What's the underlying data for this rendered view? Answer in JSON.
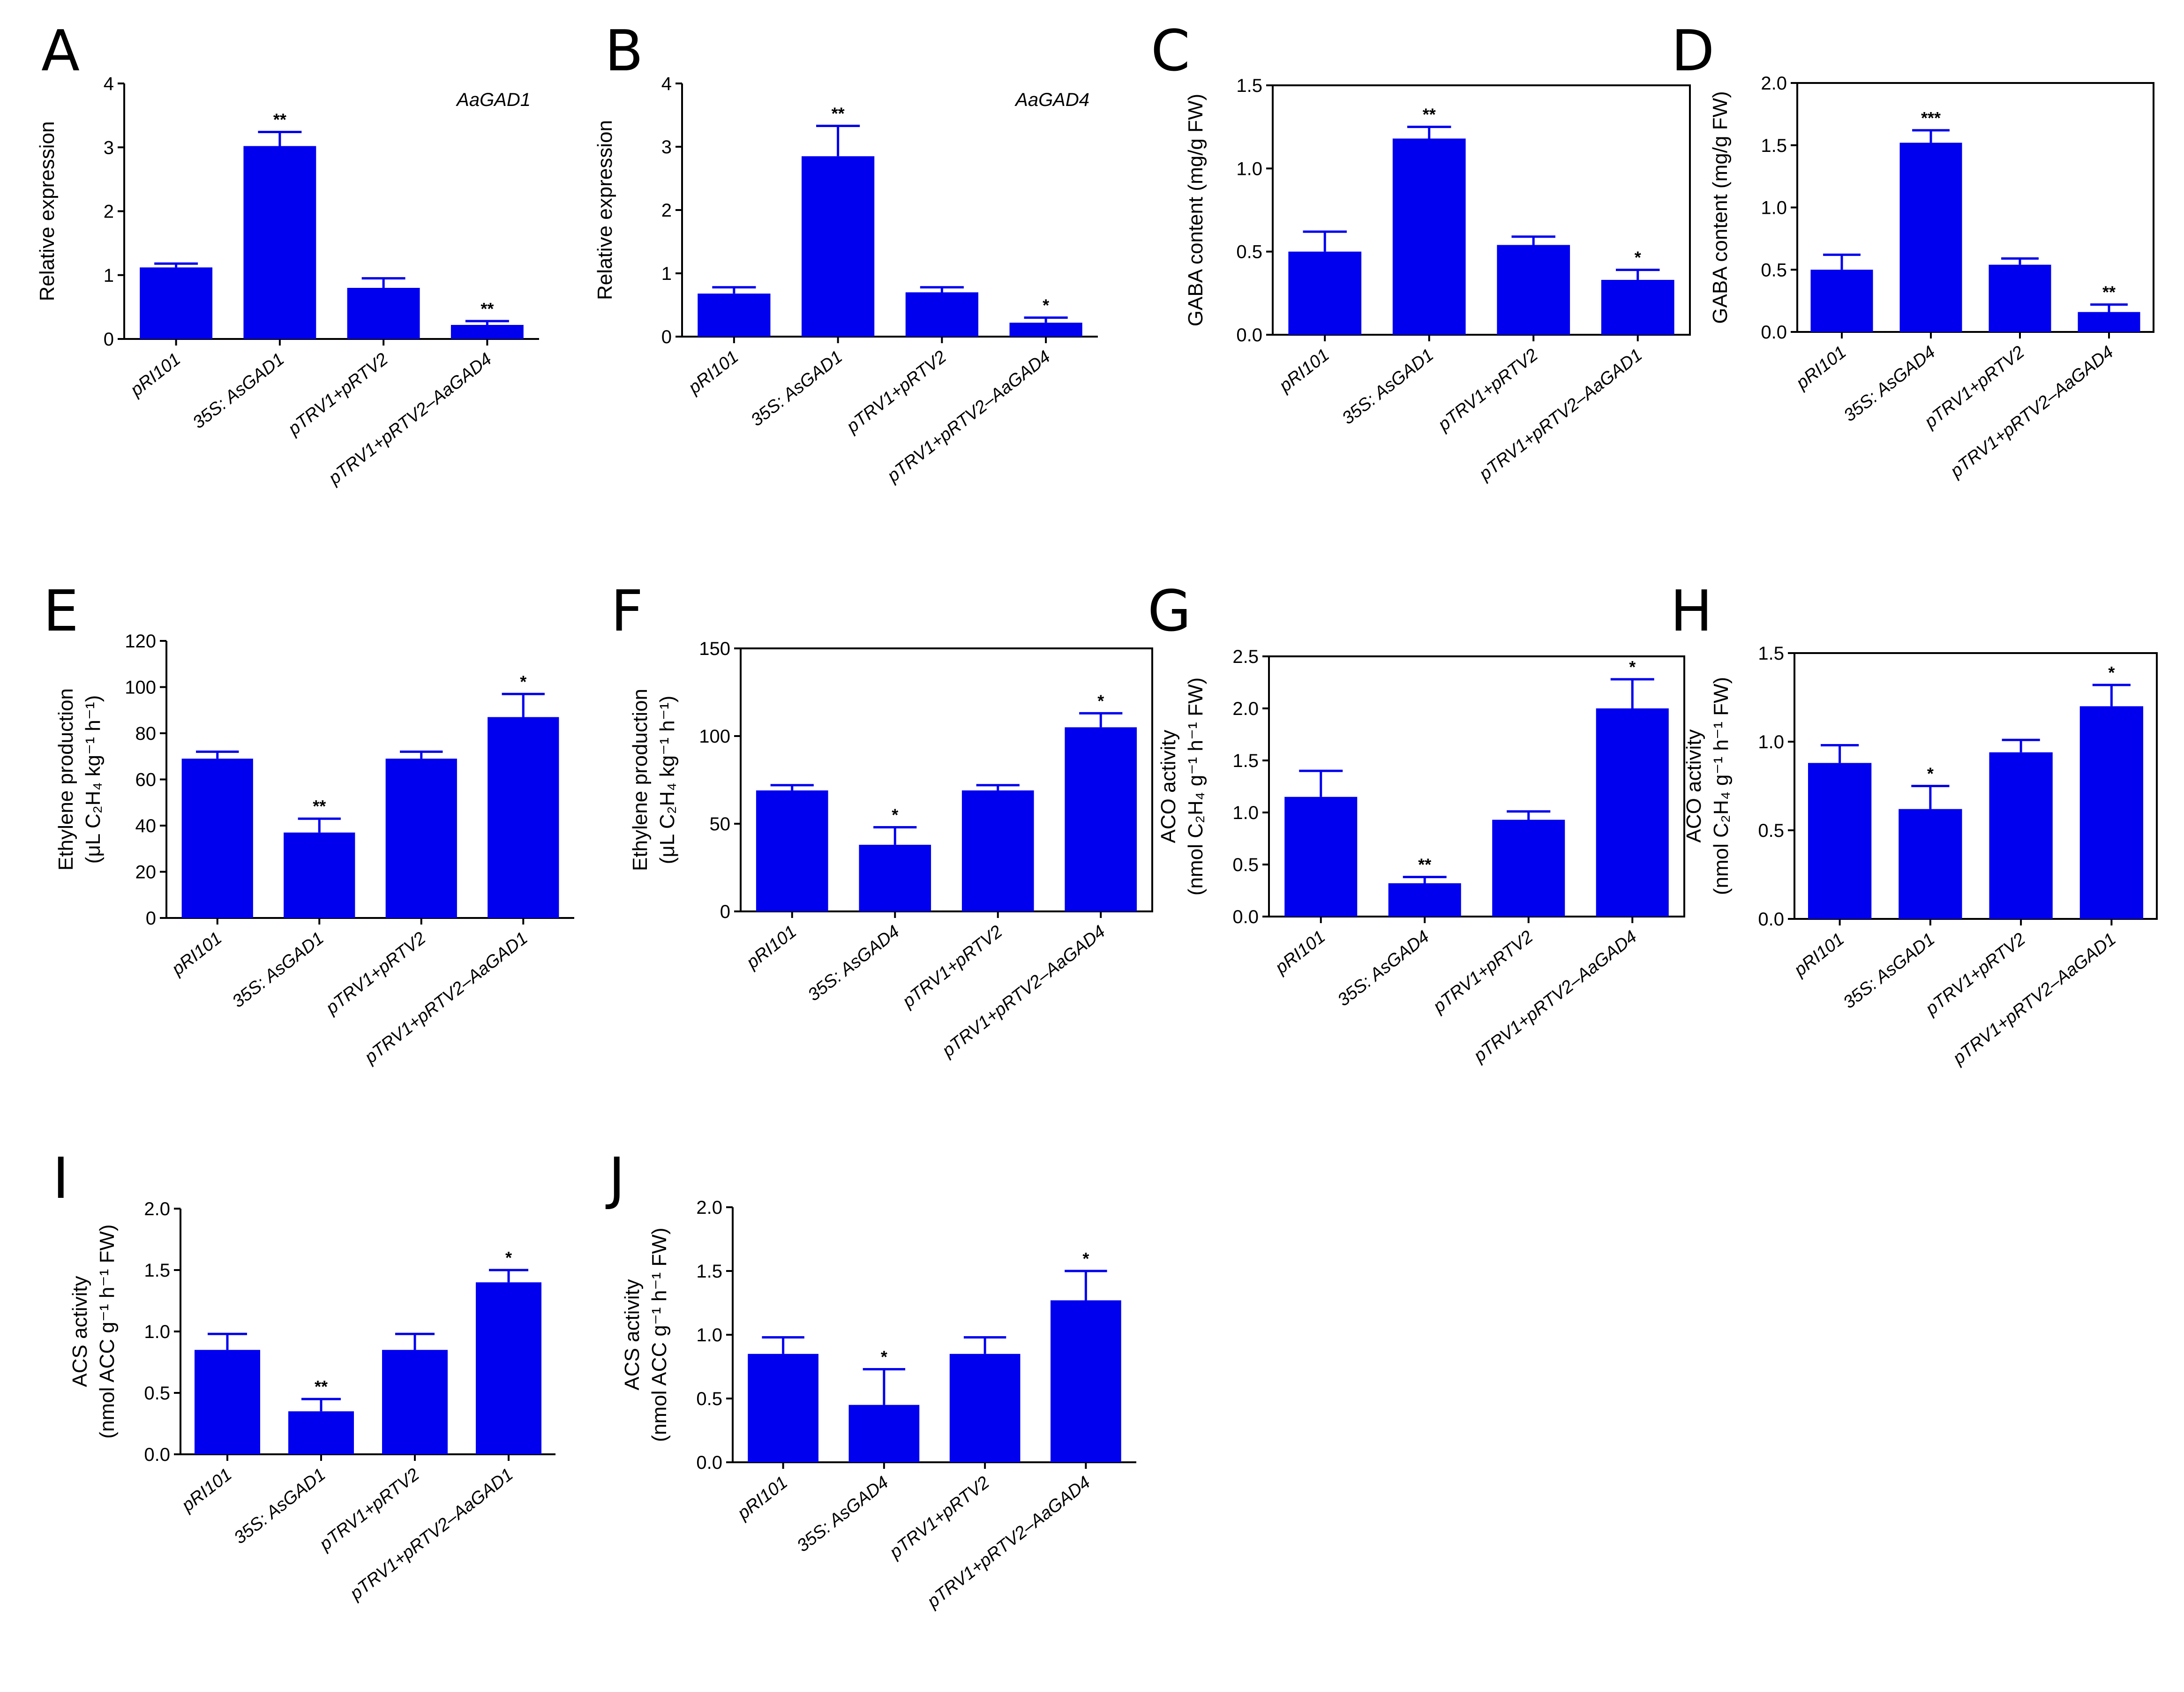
{
  "figure": {
    "bar_color": "#0000ee",
    "axis_color": "#000000"
  },
  "chart_data": [
    {
      "panel": "A",
      "type": "bar",
      "categories": [
        "pRI101",
        "35S: AsGAD1",
        "pTRV1+pRTV2",
        "pTRV1+pRTV2–AaGAD4"
      ],
      "values": [
        1.12,
        3.02,
        0.8,
        0.22
      ],
      "errors": [
        0.06,
        0.22,
        0.15,
        0.06
      ],
      "significance": [
        "",
        "**",
        "",
        "**"
      ],
      "ylabel": [
        "Relative expression"
      ],
      "ylim": [
        0,
        4
      ],
      "yticks": [
        "0",
        "1",
        "2",
        "3",
        "4"
      ],
      "annotation": "AaGAD1",
      "box": false
    },
    {
      "panel": "B",
      "type": "bar",
      "categories": [
        "pRI101",
        "35S: AsGAD1",
        "pTRV1+pRTV2",
        "pTRV1+pRTV2–AaGAD4"
      ],
      "values": [
        0.68,
        2.85,
        0.7,
        0.22
      ],
      "errors": [
        0.1,
        0.48,
        0.08,
        0.08
      ],
      "significance": [
        "",
        "**",
        "",
        "*"
      ],
      "ylabel": [
        "Relative expression"
      ],
      "ylim": [
        0,
        4
      ],
      "yticks": [
        "0",
        "1",
        "2",
        "3",
        "4"
      ],
      "annotation": "AaGAD4",
      "box": false
    },
    {
      "panel": "C",
      "type": "bar",
      "categories": [
        "pRI101",
        "35S: AsGAD1",
        "pTRV1+pRTV2",
        "pTRV1+pRTV2–AaGAD1"
      ],
      "values": [
        0.5,
        1.18,
        0.54,
        0.33
      ],
      "errors": [
        0.12,
        0.07,
        0.05,
        0.06
      ],
      "significance": [
        "",
        "**",
        "",
        "*"
      ],
      "ylabel": [
        "GABA content (mg/g FW)"
      ],
      "ylim": [
        0,
        1.5
      ],
      "yticks": [
        "0.0",
        "0.5",
        "1.0",
        "1.5"
      ],
      "annotation": "",
      "box": true
    },
    {
      "panel": "D",
      "type": "bar",
      "categories": [
        "pRI101",
        "35S: AsGAD4",
        "pTRV1+pRTV2",
        "pTRV1+pRTV2–AaGAD4"
      ],
      "values": [
        0.5,
        1.52,
        0.54,
        0.16
      ],
      "errors": [
        0.12,
        0.1,
        0.05,
        0.06
      ],
      "significance": [
        "",
        "***",
        "",
        "**"
      ],
      "ylabel": [
        "GABA content (mg/g FW)"
      ],
      "ylim": [
        0,
        2.0
      ],
      "yticks": [
        "0.0",
        "0.5",
        "1.0",
        "1.5",
        "2.0"
      ],
      "annotation": "",
      "box": true
    },
    {
      "panel": "E",
      "type": "bar",
      "categories": [
        "pRI101",
        "35S: AsGAD1",
        "pTRV1+pRTV2",
        "pTRV1+pRTV2–AaGAD1"
      ],
      "values": [
        69,
        37,
        69,
        87
      ],
      "errors": [
        3,
        6,
        3,
        10
      ],
      "significance": [
        "",
        "**",
        "",
        "*"
      ],
      "ylabel": [
        "Ethylene production",
        "(μL C₂H₄ kg⁻¹ h⁻¹)"
      ],
      "ylim": [
        0,
        120
      ],
      "yticks": [
        "0",
        "20",
        "40",
        "60",
        "80",
        "100",
        "120"
      ],
      "annotation": "",
      "box": false
    },
    {
      "panel": "F",
      "type": "bar",
      "categories": [
        "pRI101",
        "35S: AsGAD4",
        "pTRV1+pRTV2",
        "pTRV1+pRTV2–AaGAD4"
      ],
      "values": [
        69,
        38,
        69,
        105
      ],
      "errors": [
        3,
        10,
        3,
        8
      ],
      "significance": [
        "",
        "*",
        "",
        "*"
      ],
      "ylabel": [
        "Ethylene production",
        "(μL C₂H₄ kg⁻¹ h⁻¹)"
      ],
      "ylim": [
        0,
        150
      ],
      "yticks": [
        "0",
        "50",
        "100",
        "150"
      ],
      "annotation": "",
      "box": true
    },
    {
      "panel": "G",
      "type": "bar",
      "categories": [
        "pRI101",
        "35S: AsGAD4",
        "pTRV1+pRTV2",
        "pTRV1+pRTV2–AaGAD4"
      ],
      "values": [
        1.15,
        0.32,
        0.93,
        2.0
      ],
      "errors": [
        0.25,
        0.06,
        0.08,
        0.28
      ],
      "significance": [
        "",
        "**",
        "",
        "*"
      ],
      "ylabel": [
        "ACO activity",
        "(nmol C₂H₄ g⁻¹ h⁻¹ FW)"
      ],
      "ylim": [
        0,
        2.5
      ],
      "yticks": [
        "0.0",
        "0.5",
        "1.0",
        "1.5",
        "2.0",
        "2.5"
      ],
      "annotation": "",
      "box": true
    },
    {
      "panel": "H",
      "type": "bar",
      "categories": [
        "pRI101",
        "35S: AsGAD1",
        "pTRV1+pRTV2",
        "pTRV1+pRTV2–AaGAD1"
      ],
      "values": [
        0.88,
        0.62,
        0.94,
        1.2
      ],
      "errors": [
        0.1,
        0.13,
        0.07,
        0.12
      ],
      "significance": [
        "",
        "*",
        "",
        "*"
      ],
      "ylabel": [
        "ACO activity",
        "(nmol C₂H₄ g⁻¹ h⁻¹ FW)"
      ],
      "ylim": [
        0,
        1.5
      ],
      "yticks": [
        "0.0",
        "0.5",
        "1.0",
        "1.5"
      ],
      "annotation": "",
      "box": true
    },
    {
      "panel": "I",
      "type": "bar",
      "categories": [
        "pRI101",
        "35S: AsGAD1",
        "pTRV1+pRTV2",
        "pTRV1+pRTV2–AaGAD1"
      ],
      "values": [
        0.85,
        0.35,
        0.85,
        1.4
      ],
      "errors": [
        0.13,
        0.1,
        0.13,
        0.1
      ],
      "significance": [
        "",
        "**",
        "",
        "*"
      ],
      "ylabel": [
        "ACS activity",
        "(nmol ACC g⁻¹ h⁻¹ FW)"
      ],
      "ylim": [
        0,
        2.0
      ],
      "yticks": [
        "0.0",
        "0.5",
        "1.0",
        "1.5",
        "2.0"
      ],
      "annotation": "",
      "box": false
    },
    {
      "panel": "J",
      "type": "bar",
      "categories": [
        "pRI101",
        "35S: AsGAD4",
        "pTRV1+pRTV2",
        "pTRV1+pRTV2–AaGAD4"
      ],
      "values": [
        0.85,
        0.45,
        0.85,
        1.27
      ],
      "errors": [
        0.13,
        0.28,
        0.13,
        0.23
      ],
      "significance": [
        "",
        "*",
        "",
        "*"
      ],
      "ylabel": [
        "ACS activity",
        "(nmol ACC g⁻¹ h⁻¹ FW)"
      ],
      "ylim": [
        0,
        2.0
      ],
      "yticks": [
        "0.0",
        "0.5",
        "1.0",
        "1.5",
        "2.0"
      ],
      "annotation": "",
      "box": false
    }
  ]
}
